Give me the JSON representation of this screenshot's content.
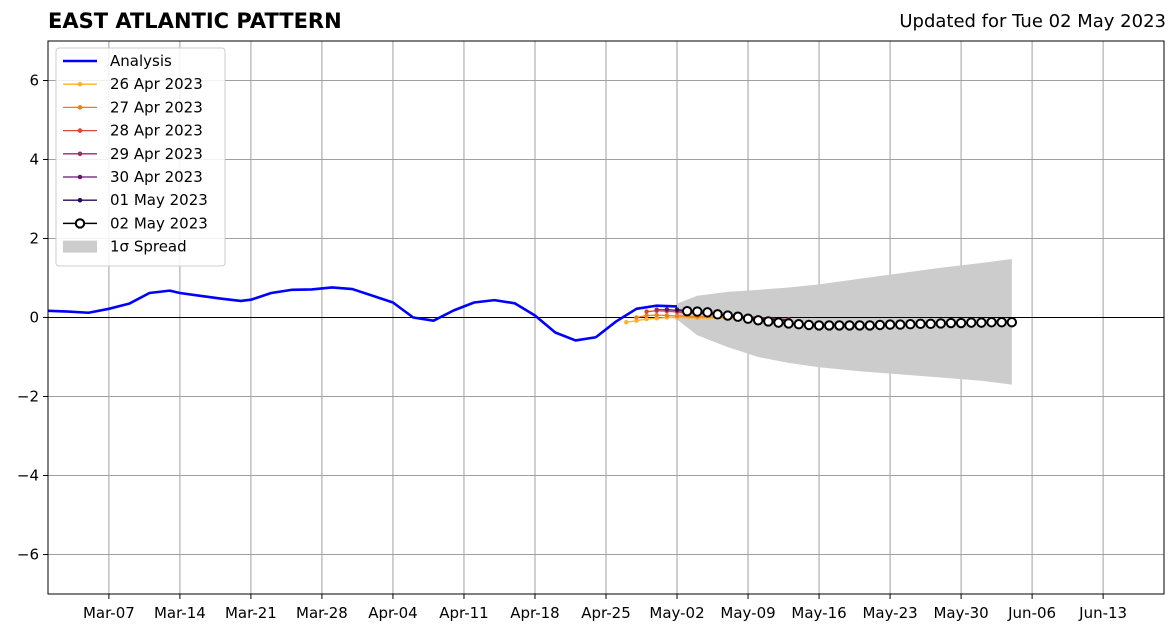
{
  "header": {
    "title": "EAST ATLANTIC PATTERN",
    "subtitle": "Updated for Tue 02 May 2023"
  },
  "chart_data": {
    "type": "line",
    "title": "EAST ATLANTIC PATTERN",
    "subtitle": "Updated for Tue 02 May 2023",
    "xlabel": "",
    "ylabel": "",
    "xlim": [
      "2023-03-01",
      "2023-06-19"
    ],
    "ylim": [
      -7,
      7
    ],
    "xticks": [
      "2023-03-07",
      "2023-03-14",
      "2023-03-21",
      "2023-03-28",
      "2023-04-04",
      "2023-04-11",
      "2023-04-18",
      "2023-04-25",
      "2023-05-02",
      "2023-05-09",
      "2023-05-16",
      "2023-05-23",
      "2023-05-30",
      "2023-06-06",
      "2023-06-13"
    ],
    "xtick_labels": [
      "Mar-07",
      "Mar-14",
      "Mar-21",
      "Mar-28",
      "Apr-04",
      "Apr-11",
      "Apr-18",
      "Apr-25",
      "May-02",
      "May-09",
      "May-16",
      "May-23",
      "May-30",
      "Jun-06",
      "Jun-13"
    ],
    "yticks": [
      -6,
      -4,
      -2,
      0,
      2,
      4,
      6
    ],
    "ytick_labels": [
      "−6",
      "−4",
      "−2",
      "0",
      "2",
      "4",
      "6"
    ],
    "grid": true,
    "legend_position": "top-left",
    "analysis": {
      "name": "Analysis",
      "color": "#0000ff",
      "x": [
        "2023-03-01",
        "2023-03-03",
        "2023-03-05",
        "2023-03-07",
        "2023-03-09",
        "2023-03-11",
        "2023-03-13",
        "2023-03-14",
        "2023-03-16",
        "2023-03-18",
        "2023-03-20",
        "2023-03-21",
        "2023-03-23",
        "2023-03-25",
        "2023-03-27",
        "2023-03-29",
        "2023-03-31",
        "2023-04-02",
        "2023-04-04",
        "2023-04-06",
        "2023-04-08",
        "2023-04-10",
        "2023-04-12",
        "2023-04-14",
        "2023-04-16",
        "2023-04-18",
        "2023-04-20",
        "2023-04-22",
        "2023-04-24",
        "2023-04-26",
        "2023-04-28",
        "2023-04-30",
        "2023-05-02"
      ],
      "values": [
        0.17,
        0.15,
        0.12,
        0.22,
        0.35,
        0.62,
        0.68,
        0.62,
        0.55,
        0.48,
        0.42,
        0.45,
        0.62,
        0.7,
        0.71,
        0.76,
        0.72,
        0.55,
        0.38,
        0.0,
        -0.08,
        0.18,
        0.38,
        0.44,
        0.36,
        0.05,
        -0.38,
        -0.58,
        -0.5,
        -0.1,
        0.22,
        0.3,
        0.28
      ]
    },
    "forecasts": [
      {
        "name": "26 Apr 2023",
        "color": "#fcb327",
        "x": [
          "2023-04-27",
          "2023-04-28",
          "2023-04-29",
          "2023-04-30",
          "2023-05-01",
          "2023-05-02",
          "2023-05-04",
          "2023-05-07",
          "2023-05-10",
          "2023-05-13"
        ],
        "values": [
          -0.12,
          -0.08,
          -0.04,
          -0.02,
          0.0,
          0.0,
          -0.01,
          -0.02,
          -0.05,
          -0.08
        ]
      },
      {
        "name": "27 Apr 2023",
        "color": "#f57d15",
        "x": [
          "2023-04-28",
          "2023-04-29",
          "2023-04-30",
          "2023-05-01",
          "2023-05-02",
          "2023-05-04",
          "2023-05-07",
          "2023-05-10",
          "2023-05-13"
        ],
        "values": [
          0.0,
          0.05,
          0.06,
          0.05,
          0.04,
          0.02,
          0.0,
          -0.04,
          -0.07
        ]
      },
      {
        "name": "28 Apr 2023",
        "color": "#d44842",
        "x": [
          "2023-04-29",
          "2023-04-30",
          "2023-05-01",
          "2023-05-02",
          "2023-05-04",
          "2023-05-07",
          "2023-05-10",
          "2023-05-13"
        ],
        "values": [
          0.15,
          0.17,
          0.16,
          0.14,
          0.1,
          0.05,
          0.0,
          -0.05
        ]
      },
      {
        "name": "29 Apr 2023",
        "color": "#9f2a63",
        "x": [
          "2023-04-30",
          "2023-05-01",
          "2023-05-02",
          "2023-05-04",
          "2023-05-07",
          "2023-05-10",
          "2023-05-13"
        ],
        "values": [
          0.2,
          0.2,
          0.18,
          0.13,
          0.06,
          0.0,
          -0.05
        ]
      },
      {
        "name": "30 Apr 2023",
        "color": "#65156e",
        "x": [
          "2023-05-01",
          "2023-05-02",
          "2023-05-04",
          "2023-05-07",
          "2023-05-10",
          "2023-05-13"
        ],
        "values": [
          0.2,
          0.18,
          0.13,
          0.05,
          -0.02,
          -0.08
        ]
      },
      {
        "name": "01 May 2023",
        "color": "#280b53",
        "x": [
          "2023-05-02",
          "2023-05-03",
          "2023-05-05",
          "2023-05-07",
          "2023-05-10",
          "2023-05-13"
        ],
        "values": [
          0.2,
          0.17,
          0.12,
          0.05,
          -0.03,
          -0.08
        ]
      }
    ],
    "current": {
      "name": "02 May 2023",
      "color": "#000000",
      "marker_fill": "#ffffff",
      "x": [
        "2023-05-03",
        "2023-05-04",
        "2023-05-05",
        "2023-05-06",
        "2023-05-07",
        "2023-05-08",
        "2023-05-09",
        "2023-05-10",
        "2023-05-11",
        "2023-05-12",
        "2023-05-13",
        "2023-05-14",
        "2023-05-15",
        "2023-05-16",
        "2023-05-17",
        "2023-05-18",
        "2023-05-19",
        "2023-05-20",
        "2023-05-21",
        "2023-05-22",
        "2023-05-23",
        "2023-05-24",
        "2023-05-25",
        "2023-05-26",
        "2023-05-27",
        "2023-05-28",
        "2023-05-29",
        "2023-05-30",
        "2023-05-31",
        "2023-06-01",
        "2023-06-02",
        "2023-06-03",
        "2023-06-04"
      ],
      "values": [
        0.16,
        0.15,
        0.13,
        0.08,
        0.05,
        0.02,
        -0.03,
        -0.07,
        -0.1,
        -0.13,
        -0.15,
        -0.17,
        -0.19,
        -0.2,
        -0.2,
        -0.2,
        -0.2,
        -0.2,
        -0.2,
        -0.19,
        -0.18,
        -0.18,
        -0.17,
        -0.16,
        -0.16,
        -0.15,
        -0.14,
        -0.14,
        -0.13,
        -0.13,
        -0.12,
        -0.12,
        -0.12
      ]
    },
    "spread": {
      "name": "1σ Spread",
      "color": "#cccccc",
      "x": [
        "2023-05-02",
        "2023-05-04",
        "2023-05-07",
        "2023-05-10",
        "2023-05-13",
        "2023-05-16",
        "2023-05-20",
        "2023-05-24",
        "2023-05-28",
        "2023-06-01",
        "2023-06-04"
      ],
      "upper": [
        0.35,
        0.55,
        0.65,
        0.7,
        0.76,
        0.84,
        0.98,
        1.12,
        1.26,
        1.38,
        1.48
      ],
      "lower": [
        -0.05,
        -0.45,
        -0.75,
        -1.0,
        -1.15,
        -1.26,
        -1.36,
        -1.44,
        -1.52,
        -1.6,
        -1.7
      ]
    },
    "legend": {
      "entries": [
        "Analysis",
        "26 Apr 2023",
        "27 Apr 2023",
        "28 Apr 2023",
        "29 Apr 2023",
        "30 Apr 2023",
        "01 May 2023",
        "02 May 2023",
        "1σ Spread"
      ]
    }
  }
}
